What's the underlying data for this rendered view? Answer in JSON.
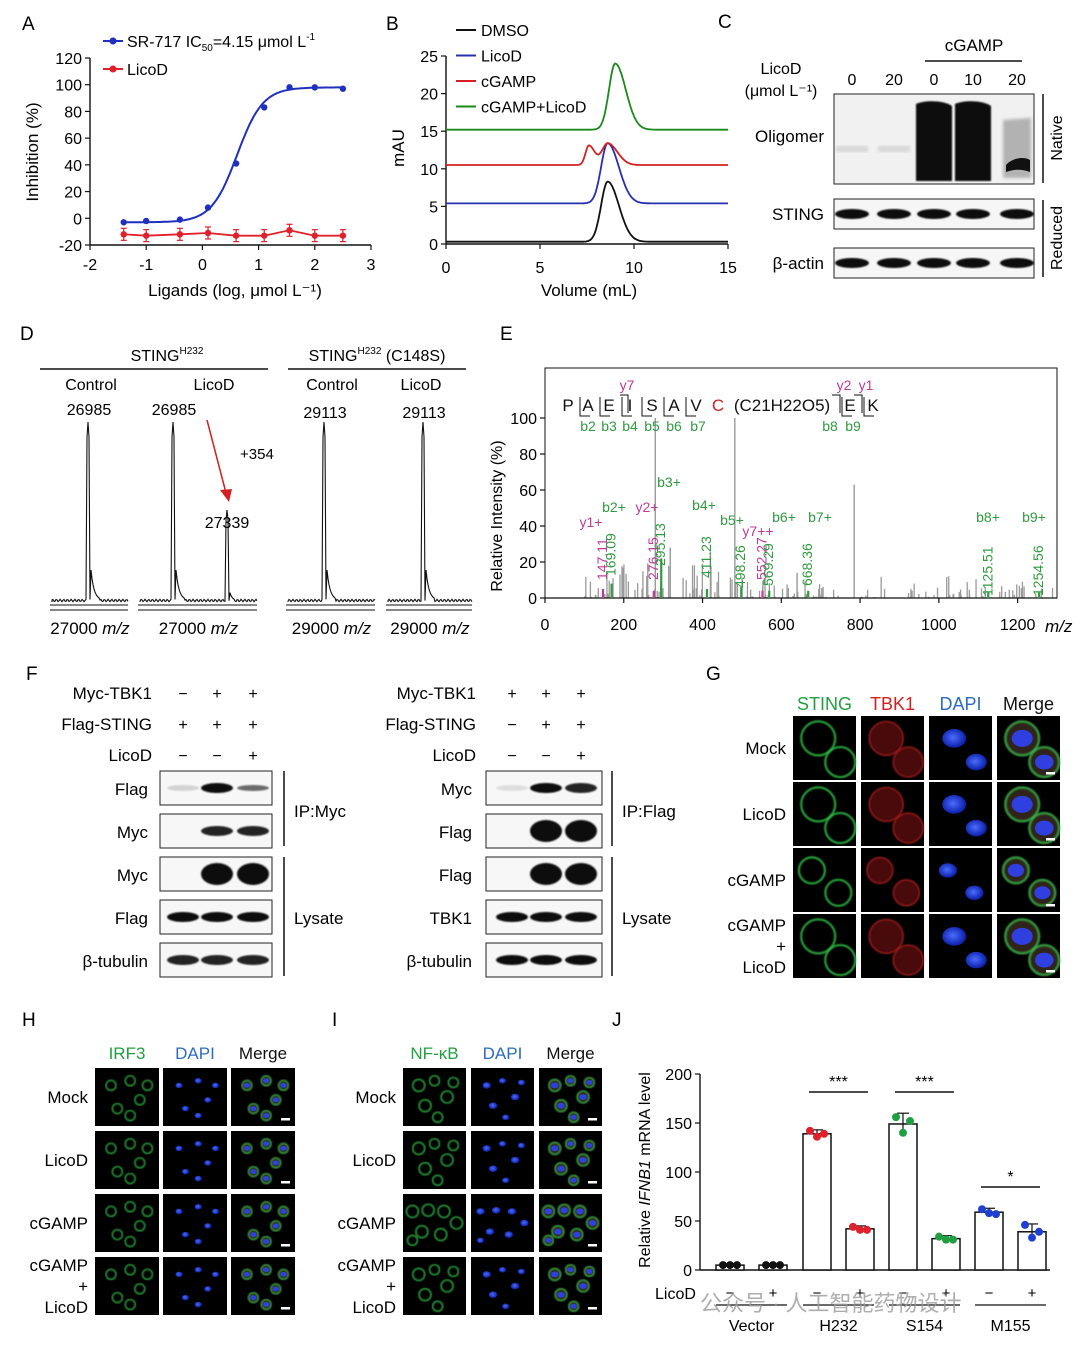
{
  "panels": {
    "A": {
      "label": "A",
      "title": "",
      "xlabel": "Ligands (log, μmol L⁻¹)",
      "ylabel": "Inhibition (%)",
      "series": [
        {
          "name": "SR-717 IC50=4.15 μmol L⁻¹",
          "legend_main": "SR-717 IC",
          "legend_sub": "50",
          "legend_rest": "=4.15 μmol L",
          "legend_sup": "-1",
          "color": "#1f2fbf",
          "x": [
            -1.4,
            -1.0,
            -0.4,
            0.1,
            0.6,
            1.1,
            1.55,
            2.0,
            2.5
          ],
          "y": [
            -3,
            -2,
            -1,
            8,
            41,
            83,
            98,
            98,
            97
          ]
        },
        {
          "name": "LicoD",
          "color": "#e0202a",
          "x": [
            -1.4,
            -1.0,
            -0.4,
            0.1,
            0.6,
            1.1,
            1.55,
            2.0,
            2.5
          ],
          "y": [
            -12,
            -13,
            -12,
            -11,
            -13,
            -13,
            -9,
            -13,
            -13
          ]
        }
      ],
      "xticks": [
        "-2",
        "-1",
        "0",
        "1",
        "2",
        "3"
      ],
      "yticks": [
        "-20",
        "0",
        "20",
        "40",
        "60",
        "80",
        "100",
        "120"
      ],
      "xlim": [
        -2,
        3
      ],
      "ylim": [
        -20,
        120
      ]
    },
    "B": {
      "label": "B",
      "xlabel": "Volume (mL)",
      "ylabel": "mAU",
      "xticks": [
        "0",
        "5",
        "10",
        "15"
      ],
      "yticks": [
        "0",
        "5",
        "10",
        "15",
        "20",
        "25"
      ],
      "xlim": [
        0,
        15
      ],
      "ylim": [
        0,
        25
      ],
      "series": [
        {
          "name": "DMSO",
          "color": "#111111",
          "baseline": 0.3,
          "peaks": [
            [
              8.6,
              8.0,
              0.35
            ]
          ]
        },
        {
          "name": "LicoD",
          "color": "#2430b0",
          "baseline": 5.4,
          "peaks": [
            [
              8.6,
              8.0,
              0.35
            ]
          ]
        },
        {
          "name": "cGAMP",
          "color": "#d42020",
          "baseline": 10.5,
          "peaks": [
            [
              7.6,
              2.6,
              0.18
            ],
            [
              8.6,
              2.9,
              0.3
            ]
          ]
        },
        {
          "name": "cGAMP+LicoD",
          "color": "#1a8a1a",
          "baseline": 15.2,
          "peaks": [
            [
              9.0,
              8.8,
              0.33
            ]
          ]
        }
      ]
    },
    "C": {
      "label": "C",
      "group_label": "cGAMP",
      "conc_label_1": "LicoD",
      "conc_label_2": "(μmol L⁻¹)",
      "lanes": [
        "0",
        "20",
        "0",
        "10",
        "20"
      ],
      "rows": [
        "Oligomer",
        "STING",
        "β-actin"
      ],
      "native": "Native",
      "reduced": "Reduced"
    },
    "D": {
      "label": "D",
      "group1": "STING",
      "group1_sup": "H232",
      "group2": "STING",
      "group2_sup": "H232",
      "group2_rest": " (C148S)",
      "spectra": [
        {
          "name": "Control",
          "peak": "26985",
          "axis": "27000"
        },
        {
          "name": "LicoD",
          "peak": "26985",
          "axis": "27000",
          "peak2": "27339",
          "shift": "+354"
        },
        {
          "name": "Control",
          "peak": "29113",
          "axis": "29000"
        },
        {
          "name": "LicoD",
          "peak": "29113",
          "axis": "29000"
        }
      ],
      "unit": "m/z"
    },
    "E": {
      "label": "E",
      "ylabel": "Relative Intensity (%)",
      "xunit": "m/z",
      "xticks": [
        "0",
        "200",
        "400",
        "600",
        "800",
        "1000",
        "1200"
      ],
      "yticks": [
        "0",
        "20",
        "40",
        "60",
        "80",
        "100"
      ],
      "xlim": [
        0,
        1300
      ],
      "ylim": [
        0,
        100
      ],
      "sequence": [
        "P",
        "A",
        "E",
        "I",
        "S",
        "A",
        "V",
        "C",
        "(C21H22O5)",
        "E",
        "K"
      ],
      "y_ions_top": [
        "y7",
        "y2",
        "y1"
      ],
      "b_ions_bottom": [
        "b2",
        "b3",
        "b4",
        "b5",
        "b6",
        "b7",
        "b8",
        "b9"
      ],
      "peak_labels": [
        {
          "text": "147.11",
          "mz": 147.11,
          "color": "#c03a9a",
          "tag": "y1+"
        },
        {
          "text": "169.09",
          "mz": 169.09,
          "color": "#2f9a3f",
          "tag": "b2+"
        },
        {
          "text": "276.15",
          "mz": 276.15,
          "color": "#c03a9a",
          "tag": "y2+"
        },
        {
          "text": "295.13",
          "mz": 295.13,
          "color": "#2f9a3f",
          "tag": "b3+"
        },
        {
          "text": "411.23",
          "mz": 411.23,
          "color": "#2f9a3f",
          "tag": "b4+"
        },
        {
          "text": "498.26",
          "mz": 498.26,
          "color": "#2f9a3f",
          "tag": "b5+"
        },
        {
          "text": "552.27",
          "mz": 552.27,
          "color": "#c03a9a",
          "tag": "y7++"
        },
        {
          "text": "569.29",
          "mz": 569.29,
          "color": "#2f9a3f",
          "tag": "b6+"
        },
        {
          "text": "668.36",
          "mz": 668.36,
          "color": "#2f9a3f",
          "tag": "b7+"
        },
        {
          "text": "1125.51",
          "mz": 1125.51,
          "color": "#2f9a3f",
          "tag": "b8+"
        },
        {
          "text": "1254.56",
          "mz": 1254.56,
          "color": "#2f9a3f",
          "tag": "b9+"
        }
      ]
    },
    "F": {
      "label": "F",
      "left": {
        "conditions": [
          {
            "name": "Myc-TBK1",
            "marks": [
              "−",
              "+",
              "+"
            ]
          },
          {
            "name": "Flag-STING",
            "marks": [
              "+",
              "+",
              "+"
            ]
          },
          {
            "name": "LicoD",
            "marks": [
              "−",
              "−",
              "+"
            ]
          }
        ],
        "rows": [
          "Flag",
          "Myc",
          "Myc",
          "Flag",
          "β-tubulin"
        ],
        "ip": "IP:Myc",
        "lysate": "Lysate"
      },
      "right": {
        "conditions": [
          {
            "name": "Myc-TBK1",
            "marks": [
              "+",
              "+",
              "+"
            ]
          },
          {
            "name": "Flag-STING",
            "marks": [
              "−",
              "+",
              "+"
            ]
          },
          {
            "name": "LicoD",
            "marks": [
              "−",
              "−",
              "+"
            ]
          }
        ],
        "rows": [
          "Myc",
          "Flag",
          "Flag",
          "TBK1",
          "β-tubulin"
        ],
        "ip": "IP:Flag",
        "lysate": "Lysate"
      }
    },
    "G": {
      "label": "G",
      "columns": [
        {
          "name": "STING",
          "color": "#22a040"
        },
        {
          "name": "TBK1",
          "color": "#d42020"
        },
        {
          "name": "DAPI",
          "color": "#2c6cc0"
        },
        {
          "name": "Merge",
          "color": "#111111"
        }
      ],
      "rows": [
        "Mock",
        "LicoD",
        "cGAMP",
        "cGAMP\n+\nLicoD"
      ]
    },
    "H": {
      "label": "H",
      "columns": [
        {
          "name": "IRF3",
          "color": "#22a040"
        },
        {
          "name": "DAPI",
          "color": "#2c6cc0"
        },
        {
          "name": "Merge",
          "color": "#111111"
        }
      ],
      "rows": [
        "Mock",
        "LicoD",
        "cGAMP",
        "cGAMP\n+\nLicoD"
      ]
    },
    "I": {
      "label": "I",
      "columns": [
        {
          "name": "NF-κB",
          "color": "#22a040"
        },
        {
          "name": "DAPI",
          "color": "#2c6cc0"
        },
        {
          "name": "Merge",
          "color": "#111111"
        }
      ],
      "rows": [
        "Mock",
        "LicoD",
        "cGAMP",
        "cGAMP\n+\nLicoD"
      ]
    },
    "J": {
      "label": "J",
      "ylabel_pre": "Relative ",
      "ylabel_gene": "IFNB1",
      "ylabel_post": " mRNA level",
      "yticks": [
        "0",
        "50",
        "100",
        "150",
        "200"
      ],
      "ylim": [
        0,
        200
      ],
      "licod_label": "LicoD",
      "groups": [
        "Vector",
        "H232",
        "S154",
        "M155"
      ],
      "bars": [
        {
          "group": "Vector",
          "licod": "−",
          "mean": 5,
          "sd": 1,
          "color": "#111111",
          "points": [
            5,
            5,
            5
          ]
        },
        {
          "group": "Vector",
          "licod": "+",
          "mean": 5,
          "sd": 1,
          "color": "#111111",
          "points": [
            5,
            5,
            5
          ]
        },
        {
          "group": "H232",
          "licod": "−",
          "mean": 139,
          "sd": 4,
          "color": "#e0202a",
          "points": [
            142,
            136,
            139
          ]
        },
        {
          "group": "H232",
          "licod": "+",
          "mean": 42,
          "sd": 3,
          "color": "#e0202a",
          "points": [
            44,
            41,
            41
          ]
        },
        {
          "group": "S154",
          "licod": "−",
          "mean": 149,
          "sd": 11,
          "color": "#1fa040",
          "points": [
            156,
            140,
            152
          ]
        },
        {
          "group": "S154",
          "licod": "+",
          "mean": 32,
          "sd": 3,
          "color": "#1fa040",
          "points": [
            34,
            31,
            31
          ]
        },
        {
          "group": "M155",
          "licod": "−",
          "mean": 59,
          "sd": 4,
          "color": "#1f3fd0",
          "points": [
            62,
            58,
            57
          ]
        },
        {
          "group": "M155",
          "licod": "+",
          "mean": 39,
          "sd": 8,
          "color": "#1f3fd0",
          "points": [
            46,
            33,
            39
          ]
        }
      ],
      "sig": [
        {
          "text": "***",
          "from": 2,
          "to": 3
        },
        {
          "text": "***",
          "from": 4,
          "to": 5
        },
        {
          "text": "*",
          "from": 6,
          "to": 7
        }
      ],
      "watermark": "公众号 · 人工智能药物设计"
    }
  }
}
